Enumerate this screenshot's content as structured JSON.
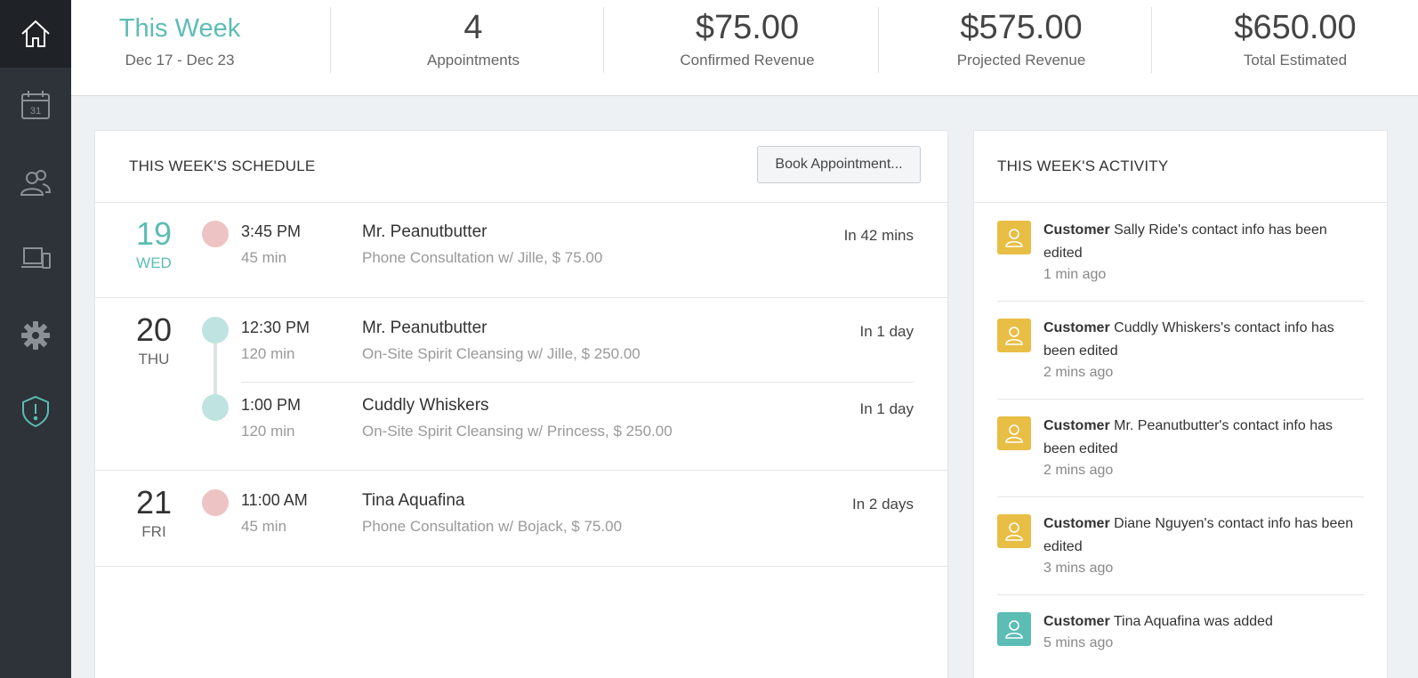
{
  "stats": {
    "week_title": "This Week",
    "week_range": "Dec 17 - Dec 23",
    "appointments_value": "4",
    "appointments_label": "Appointments",
    "confirmed_value": "$75.00",
    "confirmed_label": "Confirmed Revenue",
    "projected_value": "$575.00",
    "projected_label": "Projected Revenue",
    "total_value": "$650.00",
    "total_label": "Total Estimated"
  },
  "sidebar": {
    "items": [
      "home-icon",
      "calendar-icon",
      "people-icon",
      "devices-icon",
      "gear-icon",
      "shield-alert-icon"
    ],
    "calendar_day": "31"
  },
  "schedule": {
    "title": "THIS WEEK'S SCHEDULE",
    "book_label": "Book Appointment...",
    "days": [
      {
        "num": "19",
        "name": "WED",
        "appointments": [
          {
            "time": "3:45 PM",
            "duration": "45 min",
            "customer": "Mr. Peanutbutter",
            "desc": "Phone Consultation w/ Jille, $ 75.00",
            "when": "In 42 mins",
            "status": "pink"
          }
        ]
      },
      {
        "num": "20",
        "name": "THU",
        "appointments": [
          {
            "time": "12:30 PM",
            "duration": "120 min",
            "customer": "Mr. Peanutbutter",
            "desc": "On-Site Spirit Cleansing w/ Jille, $ 250.00",
            "when": "In 1 day",
            "status": "teal"
          },
          {
            "time": "1:00 PM",
            "duration": "120 min",
            "customer": "Cuddly Whiskers",
            "desc": "On-Site Spirit Cleansing w/ Princess, $ 250.00",
            "when": "In 1 day",
            "status": "teal"
          }
        ]
      },
      {
        "num": "21",
        "name": "FRI",
        "appointments": [
          {
            "time": "11:00 AM",
            "duration": "45 min",
            "customer": "Tina Aquafina",
            "desc": "Phone Consultation w/ Bojack, $ 75.00",
            "when": "In 2 days",
            "status": "pink"
          }
        ]
      }
    ]
  },
  "activity": {
    "title": "THIS WEEK'S ACTIVITY",
    "items": [
      {
        "bold": "Customer",
        "text": " Sally Ride's contact info has been edited",
        "time": "1 min ago",
        "color": "#e8be45"
      },
      {
        "bold": "Customer",
        "text": " Cuddly Whiskers's contact info has been edited",
        "time": "2 mins ago",
        "color": "#e8be45"
      },
      {
        "bold": "Customer",
        "text": " Mr. Peanutbutter's contact info has been edited",
        "time": "2 mins ago",
        "color": "#e8be45"
      },
      {
        "bold": "Customer",
        "text": " Diane Nguyen's contact info has been edited",
        "time": "3 mins ago",
        "color": "#e8be45"
      },
      {
        "bold": "Customer",
        "text": " Tina Aquafina was added",
        "time": "5 mins ago",
        "color": "#5cbdb5"
      }
    ]
  }
}
